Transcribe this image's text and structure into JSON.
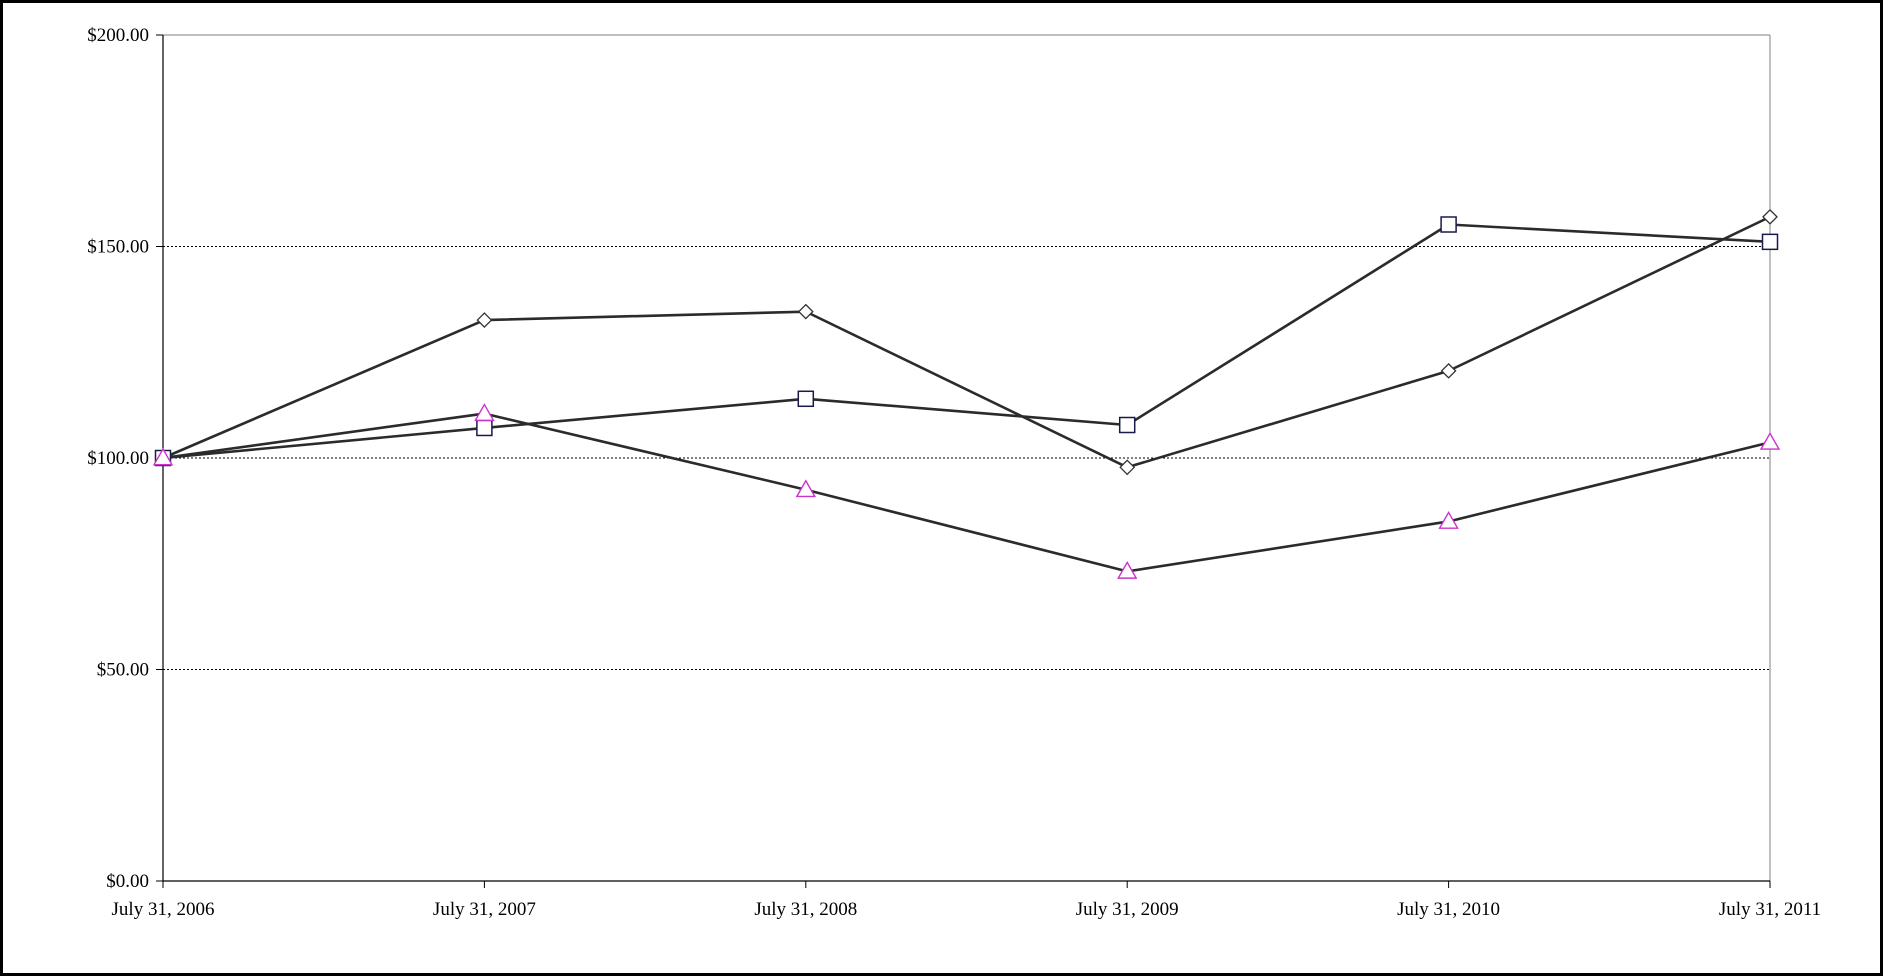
{
  "chart_data": {
    "type": "line",
    "categories": [
      "July 31, 2006",
      "July 31, 2007",
      "July 31, 2008",
      "July 31, 2009",
      "July 31, 2010",
      "July 31, 2011"
    ],
    "y_ticks": [
      "$0.00",
      "$50.00",
      "$100.00",
      "$150.00",
      "$200.00"
    ],
    "ylim": [
      0,
      200
    ],
    "grid": "horizontal dotted at 50, 100, 150",
    "legend": "none",
    "series": [
      {
        "marker": "diamond",
        "line_color": "#2b2b2b",
        "marker_stroke": "#333333",
        "marker_fill": "#ffffff",
        "values": [
          100,
          132.6,
          134.6,
          97.8,
          120.6,
          157
        ]
      },
      {
        "marker": "square",
        "line_color": "#2b2b2b",
        "marker_stroke": "#1a1a4a",
        "marker_fill": "#ffffff",
        "values": [
          100,
          107.1,
          114,
          107.8,
          155.2,
          151.1
        ]
      },
      {
        "marker": "triangle",
        "line_color": "#2b2b2b",
        "marker_stroke": "#cc33cc",
        "marker_fill": "#ffffff",
        "values": [
          100,
          110.5,
          92.5,
          73.2,
          85,
          103.7
        ]
      }
    ]
  }
}
